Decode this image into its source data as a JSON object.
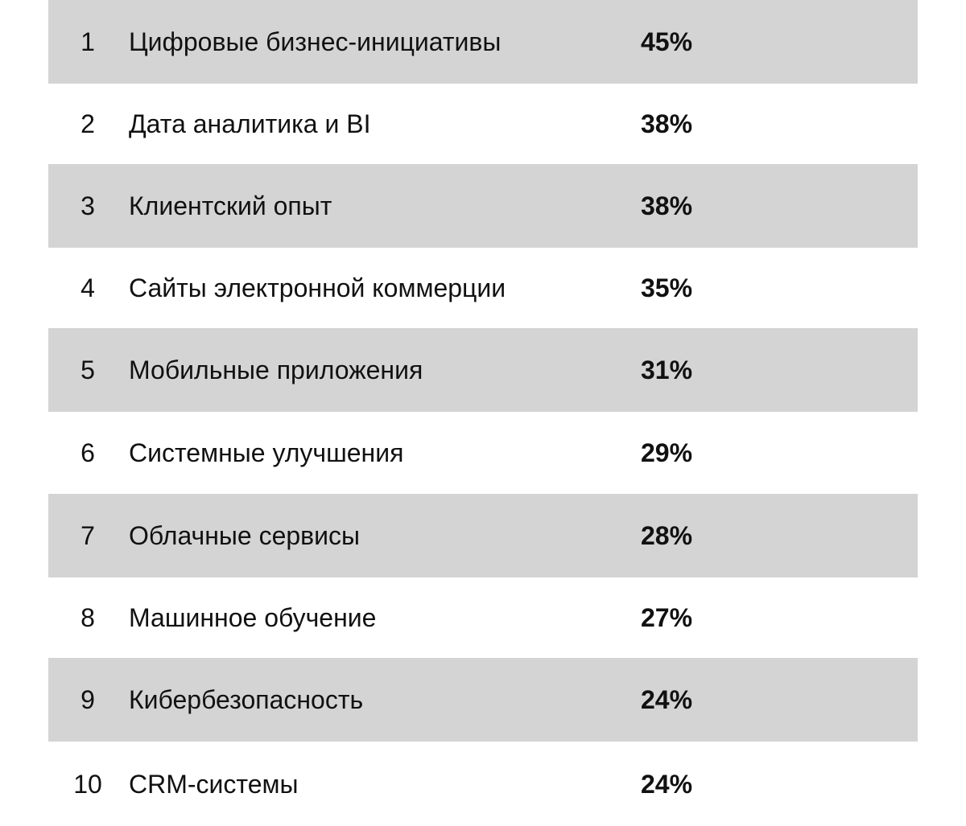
{
  "chart_data": {
    "type": "table",
    "columns": [
      "",
      "",
      ""
    ],
    "rows": [
      {
        "rank": "1",
        "label": "Цифровые бизнес-инициативы",
        "value": "45%"
      },
      {
        "rank": "2",
        "label": "Дата аналитика и BI",
        "value": "38%"
      },
      {
        "rank": "3",
        "label": "Клиентский опыт",
        "value": "38%"
      },
      {
        "rank": "4",
        "label": "Сайты электронной коммерции",
        "value": "35%"
      },
      {
        "rank": "5",
        "label": "Мобильные приложения",
        "value": "31%"
      },
      {
        "rank": "6",
        "label": "Системные улучшения",
        "value": "29%"
      },
      {
        "rank": "7",
        "label": "Облачные сервисы",
        "value": "28%"
      },
      {
        "rank": "8",
        "label": "Машинное обучение",
        "value": "27%"
      },
      {
        "rank": "9",
        "label": "Кибербезопасность",
        "value": "24%"
      },
      {
        "rank": "10",
        "label": "CRM-системы",
        "value": "24%"
      }
    ]
  },
  "colors": {
    "shaded_row": "#d4d4d4",
    "plain_row": "#ffffff",
    "text": "#111111"
  }
}
